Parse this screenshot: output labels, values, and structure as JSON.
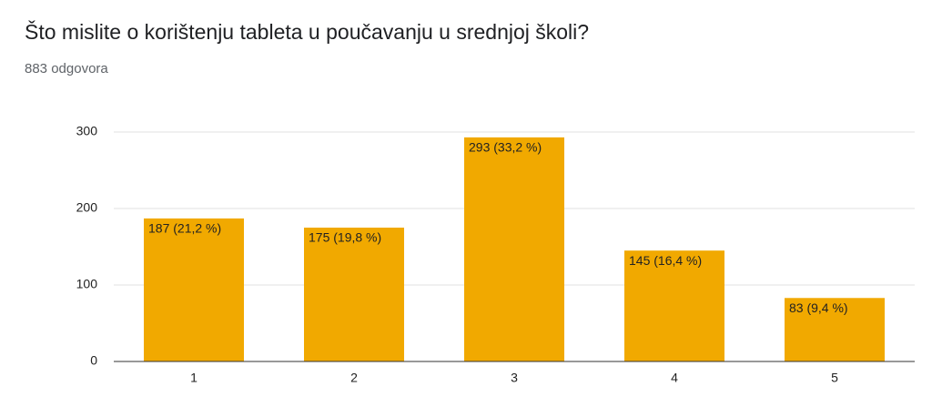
{
  "chart_data": {
    "type": "bar",
    "title": "Što mislite o korištenju tableta u poučavanju u srednjoj školi?",
    "subtitle": "883 odgovora",
    "categories": [
      "1",
      "2",
      "3",
      "4",
      "5"
    ],
    "values": [
      187,
      175,
      293,
      145,
      83
    ],
    "value_labels": [
      "187 (21,2 %)",
      "175 (19,8 %)",
      "293 (33,2 %)",
      "145 (16,4 %)",
      "83 (9,4 %)"
    ],
    "color": "#f1a900",
    "ylim": [
      0,
      300
    ],
    "yticks": [
      0,
      100,
      200,
      300
    ],
    "grid": true
  }
}
